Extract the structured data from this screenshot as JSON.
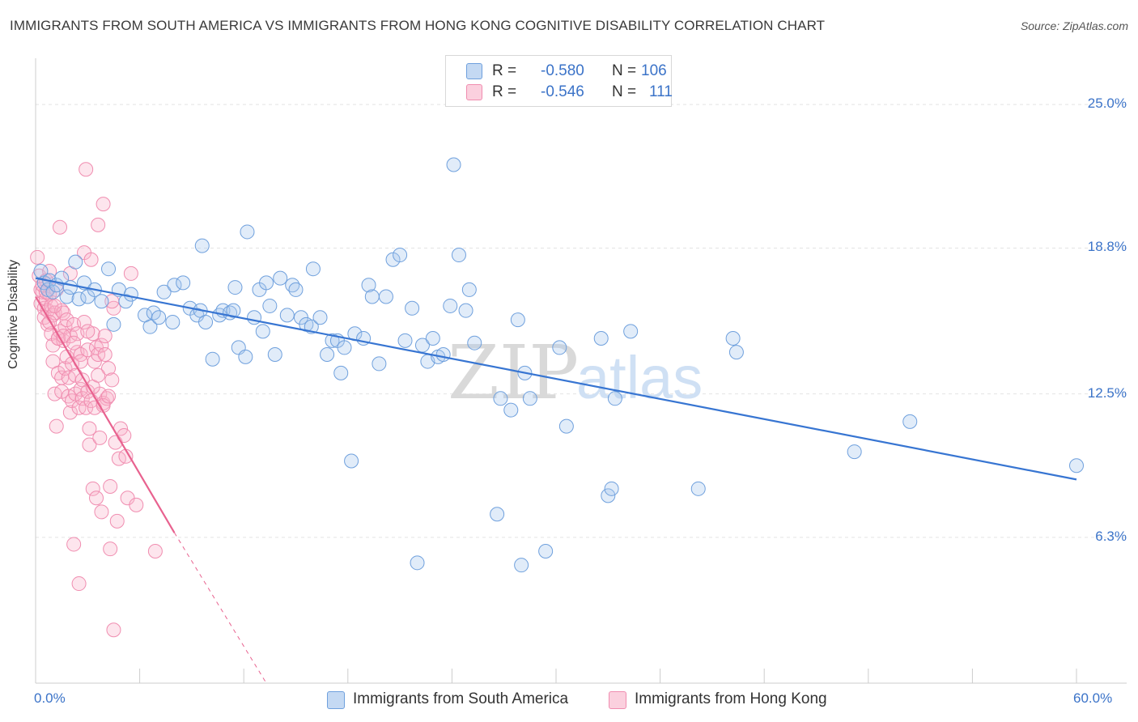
{
  "title": "IMMIGRANTS FROM SOUTH AMERICA VS IMMIGRANTS FROM HONG KONG COGNITIVE DISABILITY CORRELATION CHART",
  "source": "Source: ZipAtlas.com",
  "watermark": {
    "zip": "ZIP",
    "atlas": "atlas"
  },
  "legend": {
    "blue": {
      "r_label": "R =",
      "r_value": "-0.580",
      "n_label": "N =",
      "n_value": "106"
    },
    "pink": {
      "r_label": "R =",
      "r_value": "-0.546",
      "n_label": "N =",
      "n_value": "111"
    }
  },
  "colors": {
    "blue": "#6fa0dd",
    "blue_line": "#3775d2",
    "pink": "#f08db0",
    "pink_line": "#e8628f",
    "tick": "#3b73c8"
  },
  "chart_data": {
    "type": "scatter",
    "title": "IMMIGRANTS FROM SOUTH AMERICA VS IMMIGRANTS FROM HONG KONG COGNITIVE DISABILITY CORRELATION CHART",
    "xlabel": "",
    "ylabel": "Cognitive Disability",
    "xlim": [
      0,
      60
    ],
    "ylim": [
      0,
      27
    ],
    "x_tick_labels": [
      "0.0%",
      "60.0%"
    ],
    "y_ticks": [
      6.3,
      12.5,
      18.8,
      25.0
    ],
    "y_tick_labels": [
      "6.3%",
      "12.5%",
      "18.8%",
      "25.0%"
    ],
    "grid": true,
    "legend_position": "top-center",
    "series": [
      {
        "name": "Immigrants from South America",
        "color": "#6fa0dd",
        "trend": {
          "x": [
            0,
            60
          ],
          "y": [
            17.5,
            8.8
          ]
        },
        "points": [
          [
            0.3,
            17.8
          ],
          [
            0.5,
            17.3
          ],
          [
            0.7,
            17.0
          ],
          [
            0.8,
            17.4
          ],
          [
            1.0,
            16.9
          ],
          [
            1.2,
            17.2
          ],
          [
            1.5,
            17.5
          ],
          [
            1.8,
            16.7
          ],
          [
            2.0,
            17.1
          ],
          [
            2.3,
            18.2
          ],
          [
            2.5,
            16.6
          ],
          [
            2.8,
            17.3
          ],
          [
            3.0,
            16.7
          ],
          [
            3.4,
            17.0
          ],
          [
            3.8,
            16.5
          ],
          [
            4.2,
            17.9
          ],
          [
            4.5,
            15.5
          ],
          [
            4.8,
            17.0
          ],
          [
            5.2,
            16.5
          ],
          [
            5.5,
            16.8
          ],
          [
            6.3,
            15.9
          ],
          [
            6.6,
            15.4
          ],
          [
            6.8,
            16.0
          ],
          [
            7.1,
            15.8
          ],
          [
            7.4,
            16.9
          ],
          [
            7.9,
            15.6
          ],
          [
            8.0,
            17.2
          ],
          [
            8.5,
            17.3
          ],
          [
            8.9,
            16.2
          ],
          [
            9.3,
            15.9
          ],
          [
            9.5,
            16.1
          ],
          [
            9.6,
            18.9
          ],
          [
            9.8,
            15.6
          ],
          [
            10.2,
            14.0
          ],
          [
            10.6,
            15.9
          ],
          [
            10.8,
            16.1
          ],
          [
            11.2,
            16.0
          ],
          [
            11.4,
            16.1
          ],
          [
            11.5,
            17.1
          ],
          [
            11.7,
            14.5
          ],
          [
            12.1,
            14.1
          ],
          [
            12.2,
            19.5
          ],
          [
            12.6,
            15.8
          ],
          [
            12.9,
            17.0
          ],
          [
            13.1,
            15.2
          ],
          [
            13.3,
            17.3
          ],
          [
            13.5,
            16.3
          ],
          [
            13.8,
            14.2
          ],
          [
            14.1,
            17.5
          ],
          [
            14.5,
            15.9
          ],
          [
            14.8,
            17.2
          ],
          [
            15.0,
            17.0
          ],
          [
            15.3,
            15.8
          ],
          [
            15.6,
            15.5
          ],
          [
            15.9,
            15.4
          ],
          [
            16.0,
            17.9
          ],
          [
            16.4,
            15.8
          ],
          [
            16.8,
            14.2
          ],
          [
            17.1,
            14.8
          ],
          [
            17.4,
            14.8
          ],
          [
            17.6,
            13.4
          ],
          [
            17.8,
            14.5
          ],
          [
            18.2,
            9.6
          ],
          [
            18.4,
            15.1
          ],
          [
            18.9,
            14.9
          ],
          [
            19.2,
            17.2
          ],
          [
            19.4,
            16.7
          ],
          [
            19.8,
            13.8
          ],
          [
            20.2,
            16.7
          ],
          [
            20.6,
            18.3
          ],
          [
            21.0,
            18.5
          ],
          [
            21.3,
            14.8
          ],
          [
            21.7,
            16.2
          ],
          [
            22.0,
            5.2
          ],
          [
            22.3,
            14.6
          ],
          [
            22.6,
            13.9
          ],
          [
            22.9,
            14.9
          ],
          [
            23.2,
            14.1
          ],
          [
            23.5,
            14.2
          ],
          [
            23.9,
            16.3
          ],
          [
            24.1,
            22.4
          ],
          [
            24.4,
            18.5
          ],
          [
            24.8,
            16.1
          ],
          [
            25.0,
            17.0
          ],
          [
            25.3,
            14.7
          ],
          [
            26.6,
            7.3
          ],
          [
            26.8,
            12.3
          ],
          [
            27.4,
            11.8
          ],
          [
            27.8,
            15.7
          ],
          [
            28.0,
            5.1
          ],
          [
            28.2,
            13.4
          ],
          [
            28.5,
            12.3
          ],
          [
            29.4,
            5.7
          ],
          [
            30.2,
            14.5
          ],
          [
            30.6,
            11.1
          ],
          [
            32.6,
            14.9
          ],
          [
            33.0,
            8.1
          ],
          [
            33.2,
            8.4
          ],
          [
            33.4,
            12.3
          ],
          [
            34.3,
            15.2
          ],
          [
            38.2,
            8.4
          ],
          [
            40.2,
            14.9
          ],
          [
            40.4,
            14.3
          ],
          [
            47.2,
            10.0
          ],
          [
            50.4,
            11.3
          ],
          [
            60.0,
            9.4
          ]
        ]
      },
      {
        "name": "Immigrants from Hong Kong",
        "color": "#f08db0",
        "trend": {
          "x": [
            0,
            8.0
          ],
          "y": [
            16.7,
            6.5
          ]
        },
        "trend_dashed": {
          "x": [
            8.0,
            13.3
          ],
          "y": [
            6.5,
            0
          ]
        },
        "points": [
          [
            0.1,
            18.4
          ],
          [
            0.2,
            17.6
          ],
          [
            0.3,
            17.0
          ],
          [
            0.3,
            16.4
          ],
          [
            0.4,
            16.9
          ],
          [
            0.5,
            16.2
          ],
          [
            0.5,
            15.8
          ],
          [
            0.6,
            17.4
          ],
          [
            0.6,
            16.6
          ],
          [
            0.7,
            15.5
          ],
          [
            0.7,
            16.1
          ],
          [
            0.8,
            17.8
          ],
          [
            0.8,
            16.8
          ],
          [
            0.9,
            15.1
          ],
          [
            0.9,
            16.3
          ],
          [
            1.0,
            14.6
          ],
          [
            1.0,
            15.9
          ],
          [
            1.0,
            13.9
          ],
          [
            1.1,
            12.5
          ],
          [
            1.1,
            16.0
          ],
          [
            1.2,
            11.1
          ],
          [
            1.2,
            17.0
          ],
          [
            1.3,
            13.4
          ],
          [
            1.3,
            14.9
          ],
          [
            1.4,
            19.7
          ],
          [
            1.4,
            15.2
          ],
          [
            1.5,
            16.1
          ],
          [
            1.5,
            13.2
          ],
          [
            1.5,
            12.6
          ],
          [
            1.6,
            14.8
          ],
          [
            1.6,
            16.0
          ],
          [
            1.7,
            13.6
          ],
          [
            1.7,
            15.4
          ],
          [
            1.8,
            15.7
          ],
          [
            1.8,
            14.1
          ],
          [
            1.9,
            12.4
          ],
          [
            1.9,
            13.2
          ],
          [
            2.0,
            17.7
          ],
          [
            2.0,
            15.0
          ],
          [
            2.0,
            11.7
          ],
          [
            2.1,
            12.2
          ],
          [
            2.1,
            13.8
          ],
          [
            2.2,
            15.5
          ],
          [
            2.2,
            6.0
          ],
          [
            2.3,
            13.3
          ],
          [
            2.3,
            12.5
          ],
          [
            2.4,
            14.3
          ],
          [
            2.4,
            15.1
          ],
          [
            2.5,
            11.9
          ],
          [
            2.5,
            4.3
          ],
          [
            2.6,
            12.7
          ],
          [
            2.6,
            14.2
          ],
          [
            2.7,
            13.1
          ],
          [
            2.7,
            12.3
          ],
          [
            2.8,
            18.6
          ],
          [
            2.8,
            15.6
          ],
          [
            2.9,
            22.2
          ],
          [
            2.9,
            11.9
          ],
          [
            3.0,
            14.4
          ],
          [
            3.0,
            12.6
          ],
          [
            3.1,
            10.3
          ],
          [
            3.1,
            11.0
          ],
          [
            3.2,
            18.3
          ],
          [
            3.2,
            12.2
          ],
          [
            3.3,
            15.1
          ],
          [
            3.3,
            8.4
          ],
          [
            3.4,
            13.9
          ],
          [
            3.4,
            11.9
          ],
          [
            3.5,
            14.5
          ],
          [
            3.5,
            8.0
          ],
          [
            3.6,
            19.8
          ],
          [
            3.6,
            14.2
          ],
          [
            3.7,
            10.6
          ],
          [
            3.7,
            12.5
          ],
          [
            3.8,
            7.4
          ],
          [
            3.8,
            14.6
          ],
          [
            3.9,
            20.7
          ],
          [
            3.9,
            12.1
          ],
          [
            4.0,
            15.0
          ],
          [
            4.0,
            14.2
          ],
          [
            4.1,
            12.3
          ],
          [
            4.2,
            13.6
          ],
          [
            4.3,
            8.5
          ],
          [
            4.3,
            5.8
          ],
          [
            4.4,
            13.1
          ],
          [
            4.5,
            16.2
          ],
          [
            4.5,
            2.3
          ],
          [
            4.6,
            10.4
          ],
          [
            4.7,
            7.0
          ],
          [
            4.8,
            9.7
          ],
          [
            4.9,
            11.0
          ],
          [
            5.1,
            10.7
          ],
          [
            5.3,
            8.0
          ],
          [
            5.5,
            17.7
          ],
          [
            5.8,
            7.7
          ],
          [
            6.9,
            5.7
          ],
          [
            0.4,
            17.2
          ],
          [
            0.6,
            16.9
          ],
          [
            0.8,
            15.6
          ],
          [
            1.1,
            16.3
          ],
          [
            1.3,
            14.9
          ],
          [
            1.6,
            15.0
          ],
          [
            2.2,
            14.7
          ],
          [
            2.6,
            13.9
          ],
          [
            3.0,
            15.2
          ],
          [
            3.3,
            12.8
          ],
          [
            3.6,
            13.3
          ],
          [
            3.9,
            12.0
          ],
          [
            4.2,
            12.4
          ],
          [
            4.4,
            16.5
          ],
          [
            5.2,
            9.8
          ]
        ]
      }
    ]
  },
  "bottom_legend": [
    "Immigrants from South America",
    "Immigrants from Hong Kong"
  ]
}
